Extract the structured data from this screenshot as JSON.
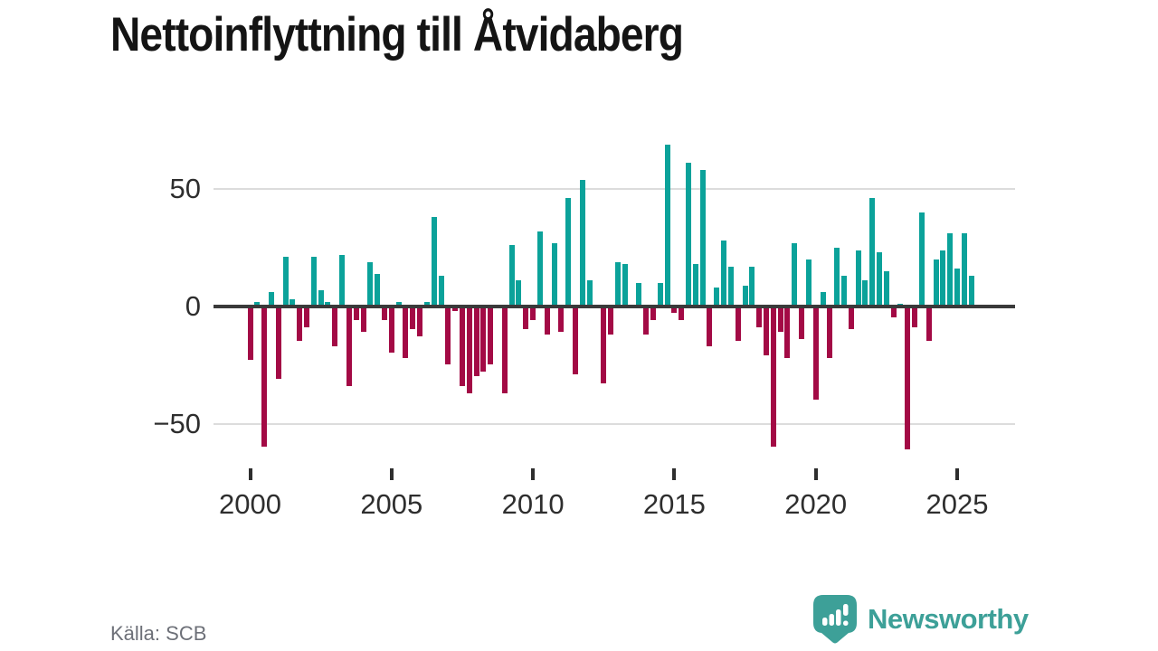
{
  "header": {
    "title": "Nettoinflyttning till Åtvidaberg"
  },
  "footer": {
    "source": "Källa: SCB",
    "brand": "Newsworthy"
  },
  "colors": {
    "positive": "#0ba29a",
    "negative": "#a30a45",
    "axis": "#3a3a3a",
    "grid": "#dcdcdc",
    "text": "#2e2e2e",
    "muted": "#6d7078",
    "brand_teal": "#3da098"
  },
  "axes": {
    "y_ticks": [
      {
        "label": "50",
        "value": 50
      },
      {
        "label": "0",
        "value": 0
      },
      {
        "label": "−50",
        "value": -50
      }
    ],
    "x_ticks": [
      {
        "label": "2000",
        "quarter_index": 0
      },
      {
        "label": "2005",
        "quarter_index": 20
      },
      {
        "label": "2010",
        "quarter_index": 40
      },
      {
        "label": "2015",
        "quarter_index": 60
      },
      {
        "label": "2020",
        "quarter_index": 80
      },
      {
        "label": "2025",
        "quarter_index": 100
      }
    ]
  },
  "chart_data": {
    "type": "bar",
    "title": "Nettoinflyttning till Åtvidaberg",
    "xlabel": "",
    "ylabel": "",
    "unit": "persons per quarter",
    "start": "2000Q1",
    "end": "2025Q3",
    "ylim": [
      -65,
      75
    ],
    "grid": "horizontal",
    "legend": "none",
    "values_by_year": {
      "2000": [
        -22,
        2,
        -59,
        6
      ],
      "2001": [
        -30,
        21,
        3,
        -14
      ],
      "2002": [
        -8,
        21,
        7,
        2
      ],
      "2003": [
        -16,
        22,
        -33,
        -5
      ],
      "2004": [
        -10,
        19,
        14,
        -5
      ],
      "2005": [
        -19,
        2,
        -21,
        -9
      ],
      "2006": [
        -12,
        2,
        38,
        13
      ],
      "2007": [
        -24,
        -1,
        -33,
        -36
      ],
      "2008": [
        -29,
        -27,
        -24,
        0
      ],
      "2009": [
        -36,
        26,
        11,
        -9
      ],
      "2010": [
        -5,
        32,
        -11,
        27
      ],
      "2011": [
        -10,
        46,
        -28,
        54
      ],
      "2012": [
        11,
        0,
        -32,
        -11
      ],
      "2013": [
        19,
        18,
        0,
        10
      ],
      "2014": [
        -11,
        -5,
        10,
        69
      ],
      "2015": [
        -2,
        -5,
        61,
        18
      ],
      "2016": [
        58,
        -16,
        8,
        28
      ],
      "2017": [
        17,
        -14,
        9,
        17
      ],
      "2018": [
        -8,
        -20,
        -59,
        -10
      ],
      "2019": [
        -21,
        27,
        -13,
        20
      ],
      "2020": [
        -39,
        6,
        -21,
        25
      ],
      "2021": [
        13,
        -9,
        24,
        11
      ],
      "2022": [
        46,
        23,
        15,
        -4
      ],
      "2023": [
        1,
        -60,
        -8,
        40
      ],
      "2024": [
        -14,
        20,
        24,
        31
      ],
      "2025": [
        16,
        31,
        13
      ]
    }
  }
}
